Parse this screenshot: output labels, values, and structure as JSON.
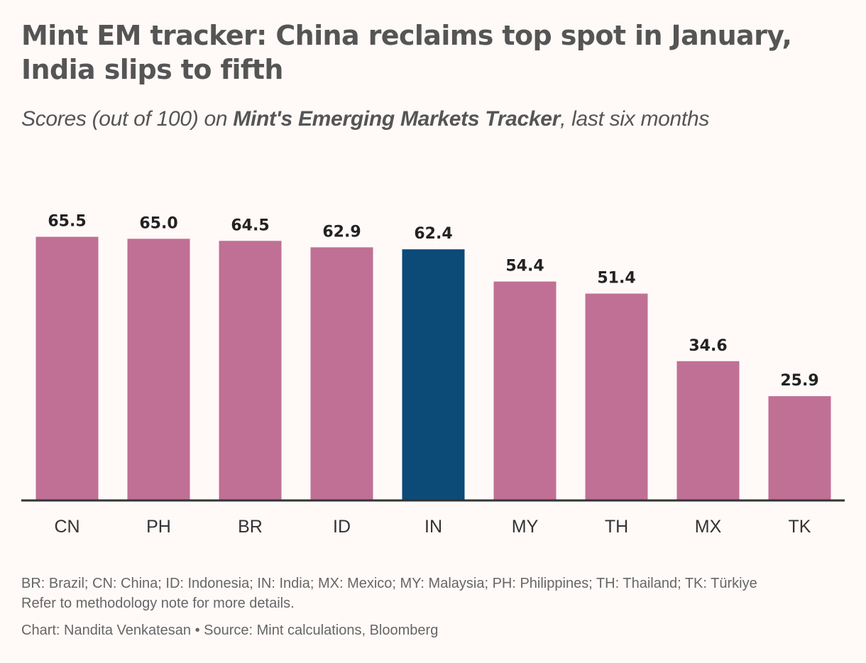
{
  "colors": {
    "background": "#fff9f8",
    "bar_default": "#c07095",
    "bar_highlight": "#0c4a78",
    "axis": "#333333"
  },
  "chart_data": {
    "type": "bar",
    "title": "Mint EM tracker: China reclaims top spot in January, India slips to fifth",
    "subtitle": {
      "prefix": "Scores (out of 100) on ",
      "emphasis": "Mint's Emerging Markets Tracker",
      "suffix": ", last six months"
    },
    "categories": [
      "CN",
      "PH",
      "BR",
      "ID",
      "IN",
      "MY",
      "TH",
      "MX",
      "TK"
    ],
    "values": [
      65.5,
      65.0,
      64.5,
      62.9,
      62.4,
      54.4,
      51.4,
      34.6,
      25.9
    ],
    "value_labels": [
      "65.5",
      "65.0",
      "64.5",
      "62.9",
      "62.4",
      "54.4",
      "51.4",
      "34.6",
      "25.9"
    ],
    "highlight": "IN",
    "xlabel": "",
    "ylabel": "",
    "ylim": [
      0,
      66
    ],
    "grid": false,
    "legend": null
  },
  "notes": {
    "legend": "BR: Brazil; CN: China; ID: Indonesia; IN: India; MX: Mexico; MY: Malaysia; PH: Philippines; TH: Thailand; TK: Türkiye",
    "methodology": "Refer to methodology note for more details.",
    "credit": "Chart: Nandita Venkatesan • Source: Mint calculations, Bloomberg"
  }
}
